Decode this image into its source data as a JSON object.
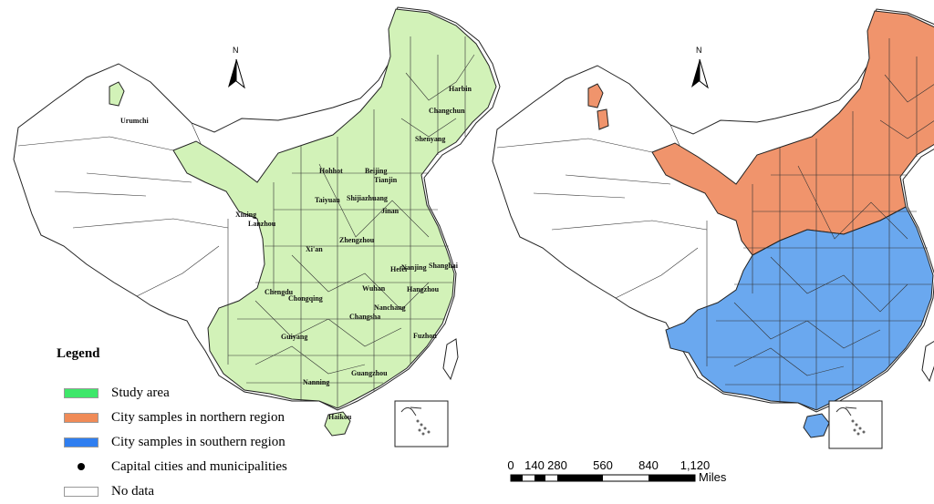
{
  "colors": {
    "study_area": "#d2f2b8",
    "northern": "#f0946c",
    "southern": "#6aa8ef",
    "no_data": "#ffffff",
    "study_area_legend": "#3ee76a",
    "northern_legend": "#f08b57",
    "southern_legend": "#2f7ef0"
  },
  "north_arrow": {
    "letter": "N"
  },
  "left_map": {
    "cities": [
      "Harbin",
      "Changchun",
      "Shenyang",
      "Urumchi",
      "Hohhot",
      "Beijing",
      "Tianjin",
      "Shijiazhuang",
      "Taiyuan",
      "Jinan",
      "Xining",
      "Lanzhou",
      "Zhengzhou",
      "Xi'an",
      "Nanjing",
      "Shanghai",
      "Hefei",
      "Hangzhou",
      "Chengdu",
      "Chongqing",
      "Wuhan",
      "Nanchang",
      "Changsha",
      "Guiyang",
      "Fuzhou",
      "Guangzhou",
      "Nanning",
      "Haikou"
    ]
  },
  "legend": {
    "title": "Legend",
    "items": [
      {
        "label": "Study area",
        "icon": "swatch",
        "color": "#3ee76a"
      },
      {
        "label": "City samples in northern region",
        "icon": "swatch",
        "color": "#f08b57"
      },
      {
        "label": "City samples in southern region",
        "icon": "swatch",
        "color": "#2f7ef0"
      },
      {
        "label": "Capital cities and municipalities",
        "icon": "dot",
        "color": "#000000"
      },
      {
        "label": "No data",
        "icon": "swatch",
        "color": "#ffffff"
      }
    ]
  },
  "scale_bar": {
    "ticks": [
      "0",
      "140",
      "280",
      "560",
      "840",
      "1,120"
    ],
    "unit": "Miles"
  }
}
